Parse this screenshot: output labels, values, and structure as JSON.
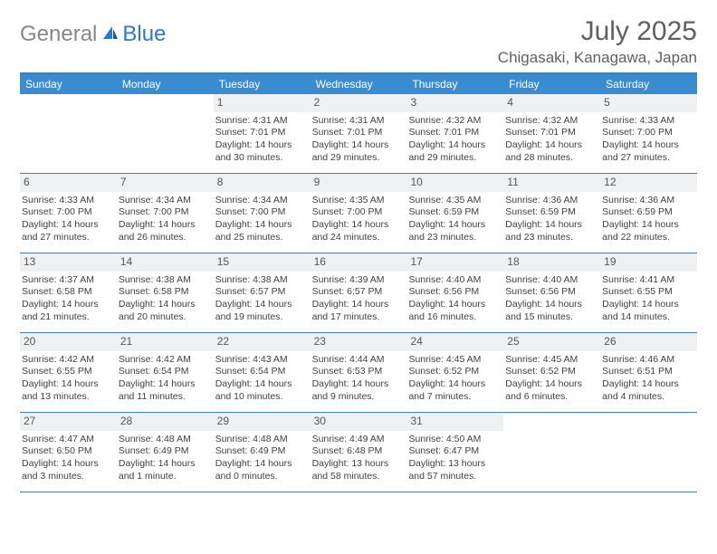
{
  "logo": {
    "part1": "General",
    "part2": "Blue"
  },
  "title": "July 2025",
  "location": "Chigasaki, Kanagawa, Japan",
  "colors": {
    "header_bar": "#3b8bd0",
    "rule": "#3b7fbd",
    "daynum_bg": "#eef0f2",
    "text": "#404040",
    "title_text": "#606060",
    "logo_gray": "#888888",
    "logo_blue": "#2f7abf"
  },
  "weekdays": [
    "Sunday",
    "Monday",
    "Tuesday",
    "Wednesday",
    "Thursday",
    "Friday",
    "Saturday"
  ],
  "weeks": [
    [
      null,
      null,
      {
        "n": "1",
        "sr": "4:31 AM",
        "ss": "7:01 PM",
        "dl": "14 hours and 30 minutes."
      },
      {
        "n": "2",
        "sr": "4:31 AM",
        "ss": "7:01 PM",
        "dl": "14 hours and 29 minutes."
      },
      {
        "n": "3",
        "sr": "4:32 AM",
        "ss": "7:01 PM",
        "dl": "14 hours and 29 minutes."
      },
      {
        "n": "4",
        "sr": "4:32 AM",
        "ss": "7:01 PM",
        "dl": "14 hours and 28 minutes."
      },
      {
        "n": "5",
        "sr": "4:33 AM",
        "ss": "7:00 PM",
        "dl": "14 hours and 27 minutes."
      }
    ],
    [
      {
        "n": "6",
        "sr": "4:33 AM",
        "ss": "7:00 PM",
        "dl": "14 hours and 27 minutes."
      },
      {
        "n": "7",
        "sr": "4:34 AM",
        "ss": "7:00 PM",
        "dl": "14 hours and 26 minutes."
      },
      {
        "n": "8",
        "sr": "4:34 AM",
        "ss": "7:00 PM",
        "dl": "14 hours and 25 minutes."
      },
      {
        "n": "9",
        "sr": "4:35 AM",
        "ss": "7:00 PM",
        "dl": "14 hours and 24 minutes."
      },
      {
        "n": "10",
        "sr": "4:35 AM",
        "ss": "6:59 PM",
        "dl": "14 hours and 23 minutes."
      },
      {
        "n": "11",
        "sr": "4:36 AM",
        "ss": "6:59 PM",
        "dl": "14 hours and 23 minutes."
      },
      {
        "n": "12",
        "sr": "4:36 AM",
        "ss": "6:59 PM",
        "dl": "14 hours and 22 minutes."
      }
    ],
    [
      {
        "n": "13",
        "sr": "4:37 AM",
        "ss": "6:58 PM",
        "dl": "14 hours and 21 minutes."
      },
      {
        "n": "14",
        "sr": "4:38 AM",
        "ss": "6:58 PM",
        "dl": "14 hours and 20 minutes."
      },
      {
        "n": "15",
        "sr": "4:38 AM",
        "ss": "6:57 PM",
        "dl": "14 hours and 19 minutes."
      },
      {
        "n": "16",
        "sr": "4:39 AM",
        "ss": "6:57 PM",
        "dl": "14 hours and 17 minutes."
      },
      {
        "n": "17",
        "sr": "4:40 AM",
        "ss": "6:56 PM",
        "dl": "14 hours and 16 minutes."
      },
      {
        "n": "18",
        "sr": "4:40 AM",
        "ss": "6:56 PM",
        "dl": "14 hours and 15 minutes."
      },
      {
        "n": "19",
        "sr": "4:41 AM",
        "ss": "6:55 PM",
        "dl": "14 hours and 14 minutes."
      }
    ],
    [
      {
        "n": "20",
        "sr": "4:42 AM",
        "ss": "6:55 PM",
        "dl": "14 hours and 13 minutes."
      },
      {
        "n": "21",
        "sr": "4:42 AM",
        "ss": "6:54 PM",
        "dl": "14 hours and 11 minutes."
      },
      {
        "n": "22",
        "sr": "4:43 AM",
        "ss": "6:54 PM",
        "dl": "14 hours and 10 minutes."
      },
      {
        "n": "23",
        "sr": "4:44 AM",
        "ss": "6:53 PM",
        "dl": "14 hours and 9 minutes."
      },
      {
        "n": "24",
        "sr": "4:45 AM",
        "ss": "6:52 PM",
        "dl": "14 hours and 7 minutes."
      },
      {
        "n": "25",
        "sr": "4:45 AM",
        "ss": "6:52 PM",
        "dl": "14 hours and 6 minutes."
      },
      {
        "n": "26",
        "sr": "4:46 AM",
        "ss": "6:51 PM",
        "dl": "14 hours and 4 minutes."
      }
    ],
    [
      {
        "n": "27",
        "sr": "4:47 AM",
        "ss": "6:50 PM",
        "dl": "14 hours and 3 minutes."
      },
      {
        "n": "28",
        "sr": "4:48 AM",
        "ss": "6:49 PM",
        "dl": "14 hours and 1 minute."
      },
      {
        "n": "29",
        "sr": "4:48 AM",
        "ss": "6:49 PM",
        "dl": "14 hours and 0 minutes."
      },
      {
        "n": "30",
        "sr": "4:49 AM",
        "ss": "6:48 PM",
        "dl": "13 hours and 58 minutes."
      },
      {
        "n": "31",
        "sr": "4:50 AM",
        "ss": "6:47 PM",
        "dl": "13 hours and 57 minutes."
      },
      null,
      null
    ]
  ],
  "labels": {
    "sunrise": "Sunrise: ",
    "sunset": "Sunset: ",
    "daylight": "Daylight: "
  }
}
